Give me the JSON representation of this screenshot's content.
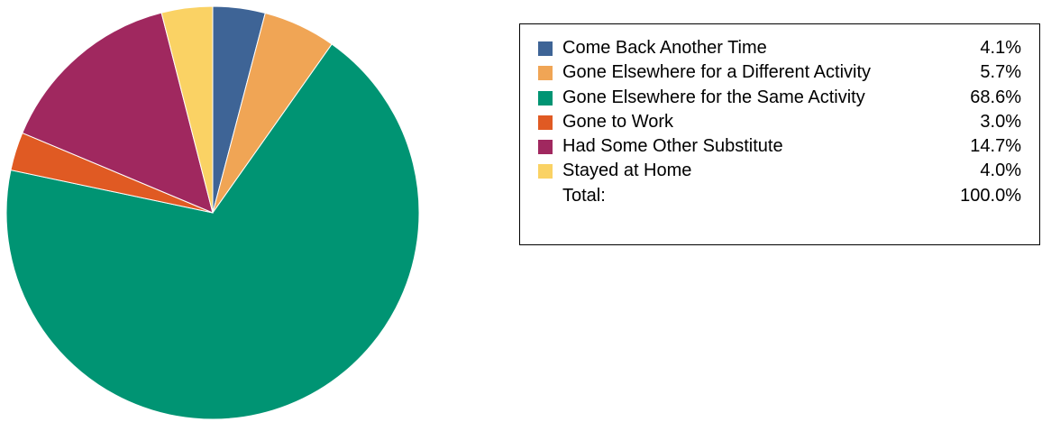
{
  "chart_data": {
    "type": "pie",
    "title": "",
    "slices": [
      {
        "label": "Come Back Another Time",
        "value": 4.1,
        "display": "4.1%",
        "color": "#3e6496"
      },
      {
        "label": "Gone Elsewhere for a Different Activity",
        "value": 5.7,
        "display": "5.7%",
        "color": "#f0a555"
      },
      {
        "label": "Gone Elsewhere for the Same Activity",
        "value": 68.6,
        "display": "68.6%",
        "color": "#009473"
      },
      {
        "label": "Gone to Work",
        "value": 3.0,
        "display": "3.0%",
        "color": "#e05a23"
      },
      {
        "label": "Had Some Other Substitute",
        "value": 14.7,
        "display": "14.7%",
        "color": "#a0285f"
      },
      {
        "label": "Stayed at Home",
        "value": 4.0,
        "display": "4.0%",
        "color": "#fad264"
      }
    ],
    "total": {
      "label": "Total:",
      "display": "100.0%"
    },
    "legend_position": "right",
    "start_angle": "top, clockwise"
  }
}
